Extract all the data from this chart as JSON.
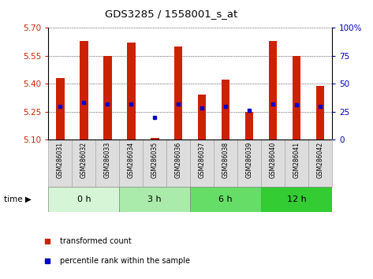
{
  "title": "GDS3285 / 1558001_s_at",
  "samples": [
    "GSM286031",
    "GSM286032",
    "GSM286033",
    "GSM286034",
    "GSM286035",
    "GSM286036",
    "GSM286037",
    "GSM286038",
    "GSM286039",
    "GSM286040",
    "GSM286041",
    "GSM286042"
  ],
  "transformed_count": [
    5.43,
    5.63,
    5.55,
    5.62,
    5.11,
    5.6,
    5.34,
    5.42,
    5.25,
    5.63,
    5.55,
    5.39
  ],
  "percentile_rank": [
    30,
    33,
    32,
    32,
    20,
    32,
    28,
    30,
    26,
    32,
    31,
    30
  ],
  "bar_bottom": 5.1,
  "left_ylim": [
    5.1,
    5.7
  ],
  "right_ylim": [
    0,
    100
  ],
  "left_yticks": [
    5.1,
    5.25,
    5.4,
    5.55,
    5.7
  ],
  "right_yticks": [
    0,
    25,
    50,
    75,
    100
  ],
  "right_yticklabels": [
    "0",
    "25",
    "50",
    "75",
    "100%"
  ],
  "groups": [
    {
      "label": "0 h",
      "start": 0,
      "end": 3,
      "color": "#d6f5d6"
    },
    {
      "label": "3 h",
      "start": 3,
      "end": 6,
      "color": "#aaeaaa"
    },
    {
      "label": "6 h",
      "start": 6,
      "end": 9,
      "color": "#66dd66"
    },
    {
      "label": "12 h",
      "start": 9,
      "end": 12,
      "color": "#33cc33"
    }
  ],
  "bar_color": "#cc2200",
  "dot_color": "#0000cc",
  "bar_width": 0.35,
  "legend_items": [
    {
      "label": "transformed count",
      "color": "#cc2200"
    },
    {
      "label": "percentile rank within the sample",
      "color": "#0000cc"
    }
  ],
  "tick_label_color_left": "#cc2200",
  "tick_label_color_right": "#0000bb",
  "sample_box_color": "#dddddd",
  "sample_box_edge": "#aaaaaa"
}
